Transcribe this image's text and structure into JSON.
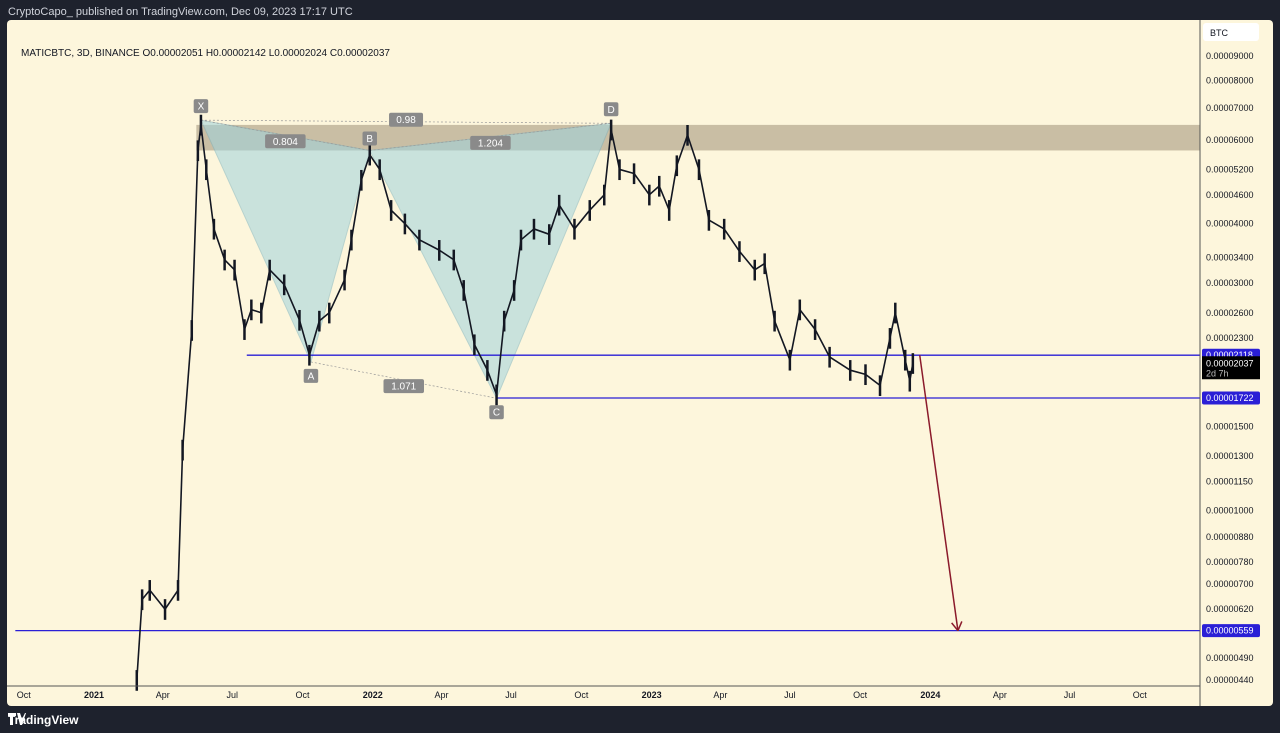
{
  "publisher_line": "CryptoCapo_ published on TradingView.com, Dec 09, 2023 17:17 UTC",
  "legend": "MATICBTC, 3D, BINANCE  O0.00002051  H0.00002142  L0.00002024  C0.00002037",
  "footer": {
    "brand": "TradingView",
    "icon": "tradingview-logo-icon"
  },
  "colors": {
    "background": "#fdf6dc",
    "price": "#131722",
    "level_line": "#2a1fd6",
    "arrow": "#8b1a2b",
    "pattern_fill": "#9fd3dd",
    "zone_fill": "#b7ab92"
  },
  "chart_data": {
    "type": "line",
    "symbol": "MATICBTC",
    "timeframe": "3D",
    "exchange": "BINANCE",
    "y_scale": "log",
    "ylim": [
      4.4e-06,
      9e-05
    ],
    "xlim": [
      "2020-09-20",
      "2024-12-31"
    ],
    "currency_label": "BTC",
    "y_ticks": [
      "0.00009000",
      "0.00008000",
      "0.00007000",
      "0.00006000",
      "0.00005200",
      "0.00004600",
      "0.00004000",
      "0.00003400",
      "0.00003000",
      "0.00002600",
      "0.00002300",
      "0.00001500",
      "0.00001300",
      "0.00001150",
      "0.00001000",
      "0.00000880",
      "0.00000780",
      "0.00000700",
      "0.00000620",
      "0.00000490",
      "0.00000440"
    ],
    "x_ticks": [
      {
        "date": "2020-10-01",
        "label": "Oct",
        "year": false
      },
      {
        "date": "2021-01-01",
        "label": "2021",
        "year": true
      },
      {
        "date": "2021-04-01",
        "label": "Apr",
        "year": false
      },
      {
        "date": "2021-07-01",
        "label": "Jul",
        "year": false
      },
      {
        "date": "2021-10-01",
        "label": "Oct",
        "year": false
      },
      {
        "date": "2022-01-01",
        "label": "2022",
        "year": true
      },
      {
        "date": "2022-04-01",
        "label": "Apr",
        "year": false
      },
      {
        "date": "2022-07-01",
        "label": "Jul",
        "year": false
      },
      {
        "date": "2022-10-01",
        "label": "Oct",
        "year": false
      },
      {
        "date": "2023-01-01",
        "label": "2023",
        "year": true
      },
      {
        "date": "2023-04-01",
        "label": "Apr",
        "year": false
      },
      {
        "date": "2023-07-01",
        "label": "Jul",
        "year": false
      },
      {
        "date": "2023-10-01",
        "label": "Oct",
        "year": false
      },
      {
        "date": "2024-01-01",
        "label": "2024",
        "year": true
      },
      {
        "date": "2024-04-01",
        "label": "Apr",
        "year": false
      },
      {
        "date": "2024-07-01",
        "label": "Jul",
        "year": false
      },
      {
        "date": "2024-10-01",
        "label": "Oct",
        "year": false
      }
    ],
    "price": [
      [
        "2021-02-26",
        4.4e-06
      ],
      [
        "2021-03-05",
        6.5e-06
      ],
      [
        "2021-03-15",
        6.8e-06
      ],
      [
        "2021-04-04",
        6.2e-06
      ],
      [
        "2021-04-21",
        6.8e-06
      ],
      [
        "2021-04-27",
        1.34e-05
      ],
      [
        "2021-05-09",
        2.39e-05
      ],
      [
        "2021-05-17",
        5.7e-05
      ],
      [
        "2021-05-21",
        6.45e-05
      ],
      [
        "2021-05-28",
        5.2e-05
      ],
      [
        "2021-06-07",
        3.9e-05
      ],
      [
        "2021-06-21",
        3.36e-05
      ],
      [
        "2021-07-04",
        3.2e-05
      ],
      [
        "2021-07-17",
        2.4e-05
      ],
      [
        "2021-07-26",
        2.64e-05
      ],
      [
        "2021-08-08",
        2.6e-05
      ],
      [
        "2021-08-19",
        3.2e-05
      ],
      [
        "2021-09-07",
        2.98e-05
      ],
      [
        "2021-09-27",
        2.51e-05
      ],
      [
        "2021-10-10",
        2.12e-05
      ],
      [
        "2021-10-23",
        2.5e-05
      ],
      [
        "2021-11-05",
        2.6e-05
      ],
      [
        "2021-11-25",
        3.05e-05
      ],
      [
        "2021-12-04",
        3.7e-05
      ],
      [
        "2021-12-17",
        4.94e-05
      ],
      [
        "2021-12-28",
        5.58e-05
      ],
      [
        "2022-01-10",
        5.2e-05
      ],
      [
        "2022-01-25",
        4.27e-05
      ],
      [
        "2022-02-12",
        4e-05
      ],
      [
        "2022-03-03",
        3.7e-05
      ],
      [
        "2022-03-29",
        3.52e-05
      ],
      [
        "2022-04-17",
        3.36e-05
      ],
      [
        "2022-04-30",
        2.9e-05
      ],
      [
        "2022-05-14",
        2.23e-05
      ],
      [
        "2022-05-31",
        1.97e-05
      ],
      [
        "2022-06-12",
        1.75e-05
      ],
      [
        "2022-06-22",
        2.5e-05
      ],
      [
        "2022-07-05",
        2.9e-05
      ],
      [
        "2022-07-14",
        3.7e-05
      ],
      [
        "2022-07-31",
        3.9e-05
      ],
      [
        "2022-08-20",
        3.8e-05
      ],
      [
        "2022-09-02",
        4.38e-05
      ],
      [
        "2022-09-22",
        3.9e-05
      ],
      [
        "2022-10-12",
        4.27e-05
      ],
      [
        "2022-10-31",
        4.6e-05
      ],
      [
        "2022-11-09",
        6.3e-05
      ],
      [
        "2022-11-20",
        5.2e-05
      ],
      [
        "2022-12-09",
        5.1e-05
      ],
      [
        "2022-12-29",
        4.6e-05
      ],
      [
        "2023-01-11",
        4.8e-05
      ],
      [
        "2023-01-24",
        4.27e-05
      ],
      [
        "2023-02-03",
        5.3e-05
      ],
      [
        "2023-02-17",
        6.14e-05
      ],
      [
        "2023-03-04",
        5.2e-05
      ],
      [
        "2023-03-17",
        4.07e-05
      ],
      [
        "2023-04-06",
        3.9e-05
      ],
      [
        "2023-04-26",
        3.5e-05
      ],
      [
        "2023-05-16",
        3.2e-05
      ],
      [
        "2023-05-29",
        3.3e-05
      ],
      [
        "2023-06-11",
        2.5e-05
      ],
      [
        "2023-07-01",
        2.07e-05
      ],
      [
        "2023-07-14",
        2.64e-05
      ],
      [
        "2023-08-03",
        2.4e-05
      ],
      [
        "2023-08-22",
        2.1e-05
      ],
      [
        "2023-09-18",
        1.97e-05
      ],
      [
        "2023-10-08",
        1.93e-05
      ],
      [
        "2023-10-27",
        1.83e-05
      ],
      [
        "2023-11-09",
        2.3e-05
      ],
      [
        "2023-11-16",
        2.6e-05
      ],
      [
        "2023-11-29",
        2.07e-05
      ],
      [
        "2023-12-05",
        1.87e-05
      ],
      [
        "2023-12-09",
        2.037e-05
      ]
    ],
    "last_price": {
      "value": "0.00002037",
      "countdown": "2d 7h"
    },
    "levels": [
      {
        "value": 2.118e-05,
        "label": "0.00002118",
        "from": "2021-07-20"
      },
      {
        "value": 1.722e-05,
        "label": "0.00001722",
        "from": "2022-06-12"
      },
      {
        "value": 5.59e-06,
        "label": "0.00000559",
        "from": "2020-09-20"
      }
    ],
    "supply_zone": {
      "from": "2021-05-15",
      "top": 6.45e-05,
      "bottom": 5.7e-05
    },
    "pattern": {
      "points": [
        {
          "label": "X",
          "date": "2021-05-21",
          "value": 6.6e-05
        },
        {
          "label": "A",
          "date": "2021-10-12",
          "value": 2.05e-05
        },
        {
          "label": "B",
          "date": "2021-12-28",
          "value": 5.7e-05
        },
        {
          "label": "C",
          "date": "2022-06-12",
          "value": 1.72e-05
        },
        {
          "label": "D",
          "date": "2022-11-09",
          "value": 6.5e-05
        }
      ],
      "ratios": [
        {
          "label": "0.804",
          "between": [
            "X",
            "B"
          ]
        },
        {
          "label": "0.98",
          "between": [
            "X",
            "D"
          ]
        },
        {
          "label": "1.204",
          "between": [
            "B",
            "D"
          ]
        },
        {
          "label": "1.071",
          "between": [
            "A",
            "C"
          ]
        }
      ]
    },
    "projection_arrow": {
      "from": {
        "date": "2023-12-18",
        "value": 2.118e-05
      },
      "to": {
        "date": "2024-02-06",
        "value": 5.59e-06
      }
    }
  }
}
